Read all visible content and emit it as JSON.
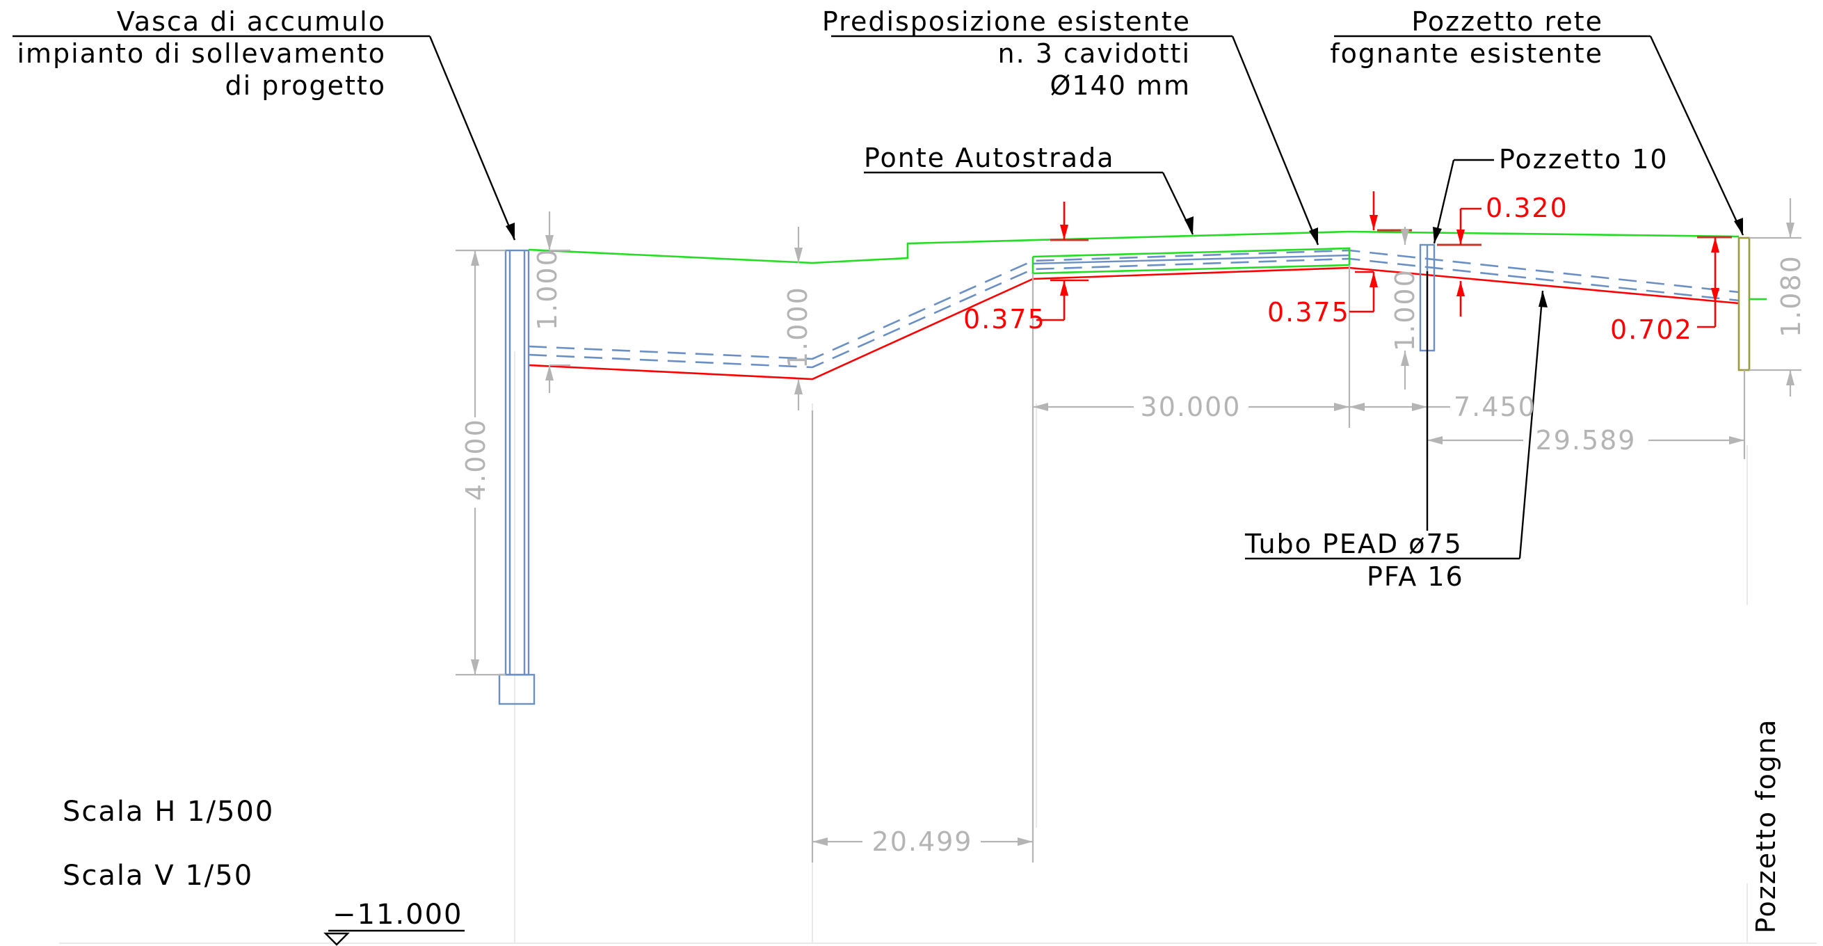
{
  "labels": {
    "vasca": [
      "Vasca di accumulo",
      "impianto di sollevamento",
      "di progetto"
    ],
    "predisposizione": [
      "Predisposizione esistente",
      "n. 3 cavidotti",
      "Ø140 mm"
    ],
    "pozzetto_rete": [
      "Pozzetto rete",
      "fognante esistente"
    ],
    "ponte": "Ponte Autostrada",
    "pozzetto10": "Pozzetto 10",
    "tubo": [
      "Tubo PEAD ø75",
      "PFA 16"
    ],
    "pozzetto_fogna": "Pozzetto fogna"
  },
  "dimensions": {
    "depth_vasca": "1.000",
    "depth_mid": "1.000",
    "depth_p10": "1.000",
    "height_vasca": "4.000",
    "height_fogna": "1.080",
    "red_375_a": "0.375",
    "red_375_b": "0.375",
    "red_320": "0.320",
    "red_702": "0.702",
    "length_30": "30.000",
    "length_7": "7.450",
    "length_29": "29.589",
    "length_20": "20.499",
    "elevation": "−11.000"
  },
  "scale": {
    "h": "Scala H 1/500",
    "v": "Scala V 1/50"
  },
  "colors": {
    "terrain": "#22dd22",
    "pipe_invert": "#ff0000",
    "conduits": "#6a8fc4",
    "dimension_lines": "#b4b4b4",
    "dimension_red": "#ff0000"
  }
}
